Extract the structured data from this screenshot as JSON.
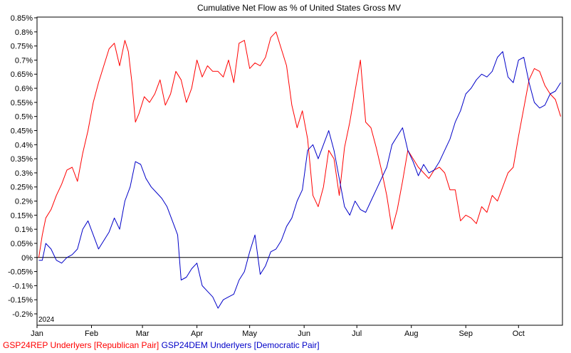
{
  "chart_data": {
    "type": "line",
    "title": "Cumulative Net Flow as % of United States Gross MV",
    "xlabel": "",
    "ylabel": "",
    "year_label": "2024",
    "x_tick_labels": [
      "Jan",
      "Feb",
      "Mar",
      "Apr",
      "May",
      "Jun",
      "Jul",
      "Aug",
      "Sep",
      "Oct"
    ],
    "y_tick_labels": [
      "-0.2%",
      "-0.15%",
      "-0.1%",
      "-0.05%",
      "0%",
      "0.05%",
      "0.1%",
      "0.15%",
      "0.2%",
      "0.25%",
      "0.3%",
      "0.35%",
      "0.4%",
      "0.45%",
      "0.5%",
      "0.55%",
      "0.6%",
      "0.65%",
      "0.7%",
      "0.75%",
      "0.8%",
      "0.85%"
    ],
    "x_range": [
      "2024-01-01",
      "2024-10-26"
    ],
    "ylim": [
      -0.2,
      0.85
    ],
    "zero_line": true,
    "grid": false,
    "legend_position": "bottom",
    "series": [
      {
        "name": "GSP24REP Underlyers [Republican Pair]",
        "color": "#ff0000",
        "x": [
          "2024-01-02",
          "2024-01-04",
          "2024-01-06",
          "2024-01-09",
          "2024-01-12",
          "2024-01-15",
          "2024-01-18",
          "2024-01-21",
          "2024-01-24",
          "2024-01-27",
          "2024-01-30",
          "2024-02-02",
          "2024-02-05",
          "2024-02-08",
          "2024-02-11",
          "2024-02-14",
          "2024-02-17",
          "2024-02-20",
          "2024-02-22",
          "2024-02-24",
          "2024-02-26",
          "2024-02-28",
          "2024-03-02",
          "2024-03-05",
          "2024-03-08",
          "2024-03-11",
          "2024-03-14",
          "2024-03-17",
          "2024-03-20",
          "2024-03-23",
          "2024-03-26",
          "2024-03-29",
          "2024-04-01",
          "2024-04-04",
          "2024-04-07",
          "2024-04-10",
          "2024-04-13",
          "2024-04-16",
          "2024-04-19",
          "2024-04-22",
          "2024-04-25",
          "2024-04-28",
          "2024-05-01",
          "2024-05-04",
          "2024-05-07",
          "2024-05-10",
          "2024-05-13",
          "2024-05-16",
          "2024-05-19",
          "2024-05-22",
          "2024-05-25",
          "2024-05-28",
          "2024-05-31",
          "2024-06-03",
          "2024-06-06",
          "2024-06-09",
          "2024-06-12",
          "2024-06-15",
          "2024-06-18",
          "2024-06-21",
          "2024-06-24",
          "2024-06-27",
          "2024-06-30",
          "2024-07-03",
          "2024-07-06",
          "2024-07-09",
          "2024-07-12",
          "2024-07-15",
          "2024-07-18",
          "2024-07-21",
          "2024-07-24",
          "2024-07-27",
          "2024-07-30",
          "2024-08-02",
          "2024-08-05",
          "2024-08-08",
          "2024-08-11",
          "2024-08-14",
          "2024-08-17",
          "2024-08-20",
          "2024-08-23",
          "2024-08-26",
          "2024-08-29",
          "2024-09-01",
          "2024-09-04",
          "2024-09-07",
          "2024-09-10",
          "2024-09-13",
          "2024-09-16",
          "2024-09-19",
          "2024-09-22",
          "2024-09-25",
          "2024-09-28",
          "2024-10-01",
          "2024-10-04",
          "2024-10-07",
          "2024-10-10",
          "2024-10-13",
          "2024-10-16",
          "2024-10-19",
          "2024-10-22",
          "2024-10-25"
        ],
        "y": [
          0.0,
          0.08,
          0.14,
          0.17,
          0.22,
          0.26,
          0.31,
          0.32,
          0.27,
          0.37,
          0.45,
          0.55,
          0.62,
          0.68,
          0.74,
          0.76,
          0.68,
          0.77,
          0.73,
          0.62,
          0.48,
          0.51,
          0.57,
          0.55,
          0.58,
          0.63,
          0.54,
          0.58,
          0.66,
          0.63,
          0.55,
          0.6,
          0.7,
          0.64,
          0.68,
          0.66,
          0.66,
          0.64,
          0.7,
          0.62,
          0.76,
          0.77,
          0.67,
          0.69,
          0.68,
          0.71,
          0.78,
          0.8,
          0.74,
          0.68,
          0.54,
          0.46,
          0.52,
          0.42,
          0.22,
          0.18,
          0.25,
          0.38,
          0.35,
          0.22,
          0.39,
          0.48,
          0.59,
          0.7,
          0.48,
          0.46,
          0.39,
          0.31,
          0.22,
          0.1,
          0.17,
          0.27,
          0.38,
          0.35,
          0.32,
          0.3,
          0.28,
          0.31,
          0.32,
          0.3,
          0.24,
          0.24,
          0.13,
          0.15,
          0.14,
          0.12,
          0.18,
          0.16,
          0.22,
          0.2,
          0.25,
          0.3,
          0.32,
          0.43,
          0.53,
          0.63,
          0.67,
          0.66,
          0.61,
          0.58,
          0.56,
          0.5
        ]
      },
      {
        "name": "GSP24DEM Underlyers [Democratic Pair]",
        "color": "#0000c8",
        "x": [
          "2024-01-02",
          "2024-01-04",
          "2024-01-06",
          "2024-01-09",
          "2024-01-12",
          "2024-01-15",
          "2024-01-18",
          "2024-01-21",
          "2024-01-24",
          "2024-01-27",
          "2024-01-30",
          "2024-02-02",
          "2024-02-05",
          "2024-02-08",
          "2024-02-11",
          "2024-02-14",
          "2024-02-17",
          "2024-02-20",
          "2024-02-23",
          "2024-02-26",
          "2024-02-29",
          "2024-03-03",
          "2024-03-06",
          "2024-03-09",
          "2024-03-12",
          "2024-03-15",
          "2024-03-18",
          "2024-03-21",
          "2024-03-23",
          "2024-03-26",
          "2024-03-29",
          "2024-04-01",
          "2024-04-04",
          "2024-04-07",
          "2024-04-10",
          "2024-04-13",
          "2024-04-16",
          "2024-04-19",
          "2024-04-22",
          "2024-04-25",
          "2024-04-28",
          "2024-05-01",
          "2024-05-04",
          "2024-05-07",
          "2024-05-10",
          "2024-05-13",
          "2024-05-16",
          "2024-05-19",
          "2024-05-22",
          "2024-05-25",
          "2024-05-28",
          "2024-05-31",
          "2024-06-03",
          "2024-06-06",
          "2024-06-09",
          "2024-06-12",
          "2024-06-15",
          "2024-06-18",
          "2024-06-21",
          "2024-06-24",
          "2024-06-27",
          "2024-06-30",
          "2024-07-03",
          "2024-07-06",
          "2024-07-09",
          "2024-07-12",
          "2024-07-15",
          "2024-07-18",
          "2024-07-21",
          "2024-07-24",
          "2024-07-27",
          "2024-07-30",
          "2024-08-02",
          "2024-08-05",
          "2024-08-08",
          "2024-08-11",
          "2024-08-14",
          "2024-08-17",
          "2024-08-20",
          "2024-08-23",
          "2024-08-26",
          "2024-08-29",
          "2024-09-01",
          "2024-09-04",
          "2024-09-07",
          "2024-09-10",
          "2024-09-13",
          "2024-09-16",
          "2024-09-19",
          "2024-09-22",
          "2024-09-25",
          "2024-09-28",
          "2024-10-01",
          "2024-10-04",
          "2024-10-07",
          "2024-10-10",
          "2024-10-13",
          "2024-10-16",
          "2024-10-19",
          "2024-10-22",
          "2024-10-25"
        ],
        "y": [
          -0.01,
          -0.01,
          0.05,
          0.03,
          -0.01,
          -0.02,
          0.0,
          0.01,
          0.03,
          0.1,
          0.13,
          0.08,
          0.03,
          0.06,
          0.09,
          0.14,
          0.1,
          0.2,
          0.25,
          0.34,
          0.33,
          0.28,
          0.25,
          0.23,
          0.21,
          0.18,
          0.13,
          0.08,
          -0.08,
          -0.07,
          -0.04,
          -0.02,
          -0.1,
          -0.12,
          -0.14,
          -0.18,
          -0.15,
          -0.14,
          -0.13,
          -0.08,
          -0.05,
          0.02,
          0.08,
          -0.06,
          -0.03,
          0.02,
          0.03,
          0.06,
          0.11,
          0.14,
          0.2,
          0.24,
          0.38,
          0.4,
          0.35,
          0.4,
          0.45,
          0.38,
          0.28,
          0.18,
          0.15,
          0.2,
          0.17,
          0.16,
          0.2,
          0.24,
          0.28,
          0.32,
          0.4,
          0.43,
          0.46,
          0.38,
          0.34,
          0.29,
          0.33,
          0.3,
          0.31,
          0.34,
          0.38,
          0.42,
          0.48,
          0.52,
          0.58,
          0.6,
          0.63,
          0.65,
          0.64,
          0.66,
          0.71,
          0.73,
          0.64,
          0.62,
          0.7,
          0.71,
          0.62,
          0.55,
          0.53,
          0.54,
          0.58,
          0.59,
          0.62
        ]
      }
    ]
  }
}
